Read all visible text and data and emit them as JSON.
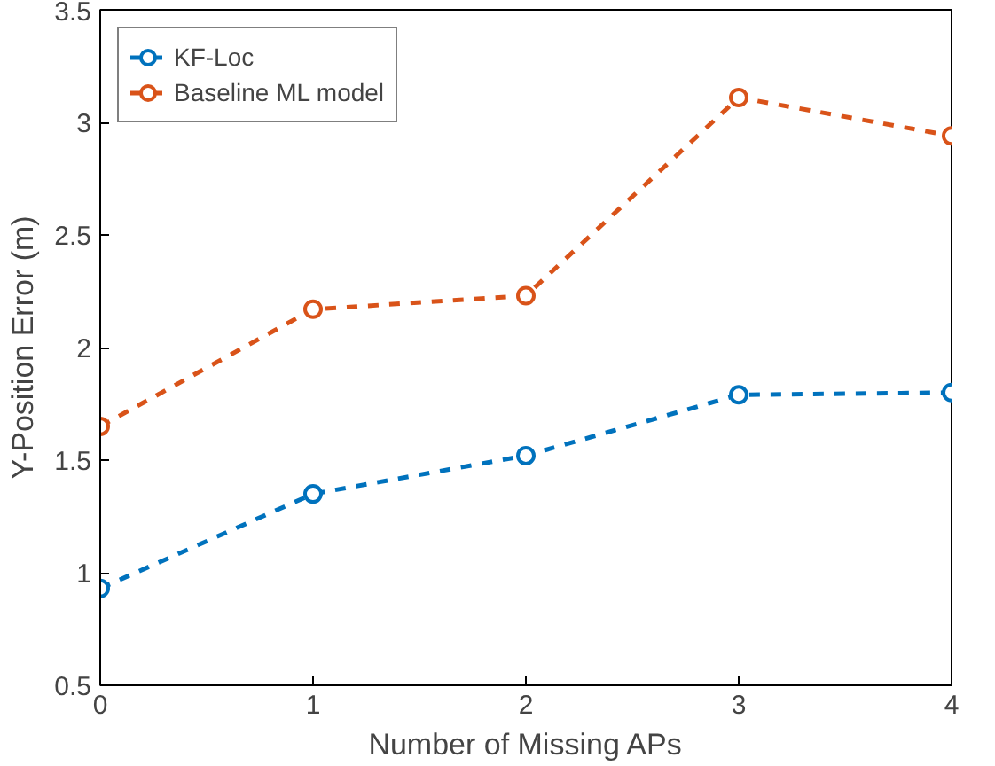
{
  "chart_data": {
    "type": "line",
    "xlabel": "Number of Missing APs",
    "ylabel": "Y-Position Error (m)",
    "x": [
      0,
      1,
      2,
      3,
      4
    ],
    "series": [
      {
        "name": "KF-Loc",
        "color": "#0072bd",
        "values": [
          0.93,
          1.35,
          1.52,
          1.79,
          1.8
        ]
      },
      {
        "name": "Baseline ML model",
        "color": "#d95319",
        "values": [
          1.65,
          2.17,
          2.23,
          3.11,
          2.94
        ]
      }
    ],
    "xlim": [
      0,
      4
    ],
    "xticks": [
      0,
      1,
      2,
      3,
      4
    ],
    "ylim": [
      0.5,
      3.5
    ],
    "yticks": [
      0.5,
      1,
      1.5,
      2,
      2.5,
      3,
      3.5
    ],
    "legend": "top left",
    "marker": "circle",
    "line_style": "dashed",
    "grid": false
  }
}
